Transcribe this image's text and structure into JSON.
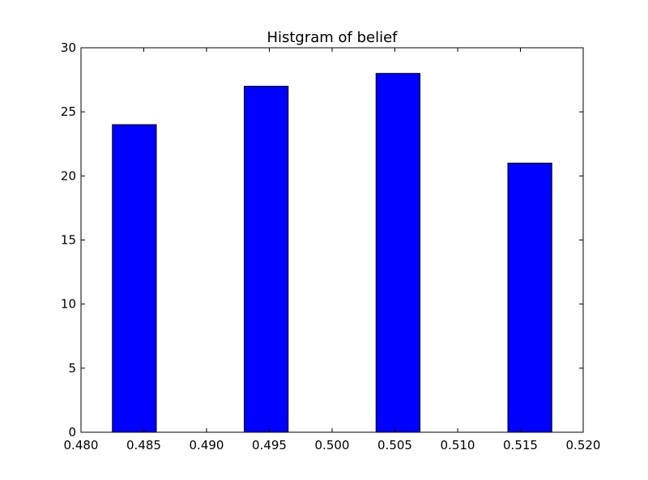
{
  "chart_data": {
    "type": "bar",
    "title": "Histgram of belief",
    "xlabel": "",
    "ylabel": "",
    "xlim": [
      0.48,
      0.52
    ],
    "ylim": [
      0,
      30
    ],
    "xticks": [
      "0.480",
      "0.485",
      "0.490",
      "0.495",
      "0.500",
      "0.505",
      "0.510",
      "0.515",
      "0.520"
    ],
    "yticks": [
      "0",
      "5",
      "10",
      "15",
      "20",
      "25",
      "30"
    ],
    "bars": [
      {
        "x_start": 0.4825,
        "x_end": 0.486,
        "value": 24
      },
      {
        "x_start": 0.493,
        "x_end": 0.4965,
        "value": 27
      },
      {
        "x_start": 0.5035,
        "x_end": 0.507,
        "value": 28
      },
      {
        "x_start": 0.514,
        "x_end": 0.5175,
        "value": 21
      }
    ],
    "bar_color": "#0000ff",
    "edge_color": "#000000",
    "grid": false,
    "legend": "none"
  }
}
